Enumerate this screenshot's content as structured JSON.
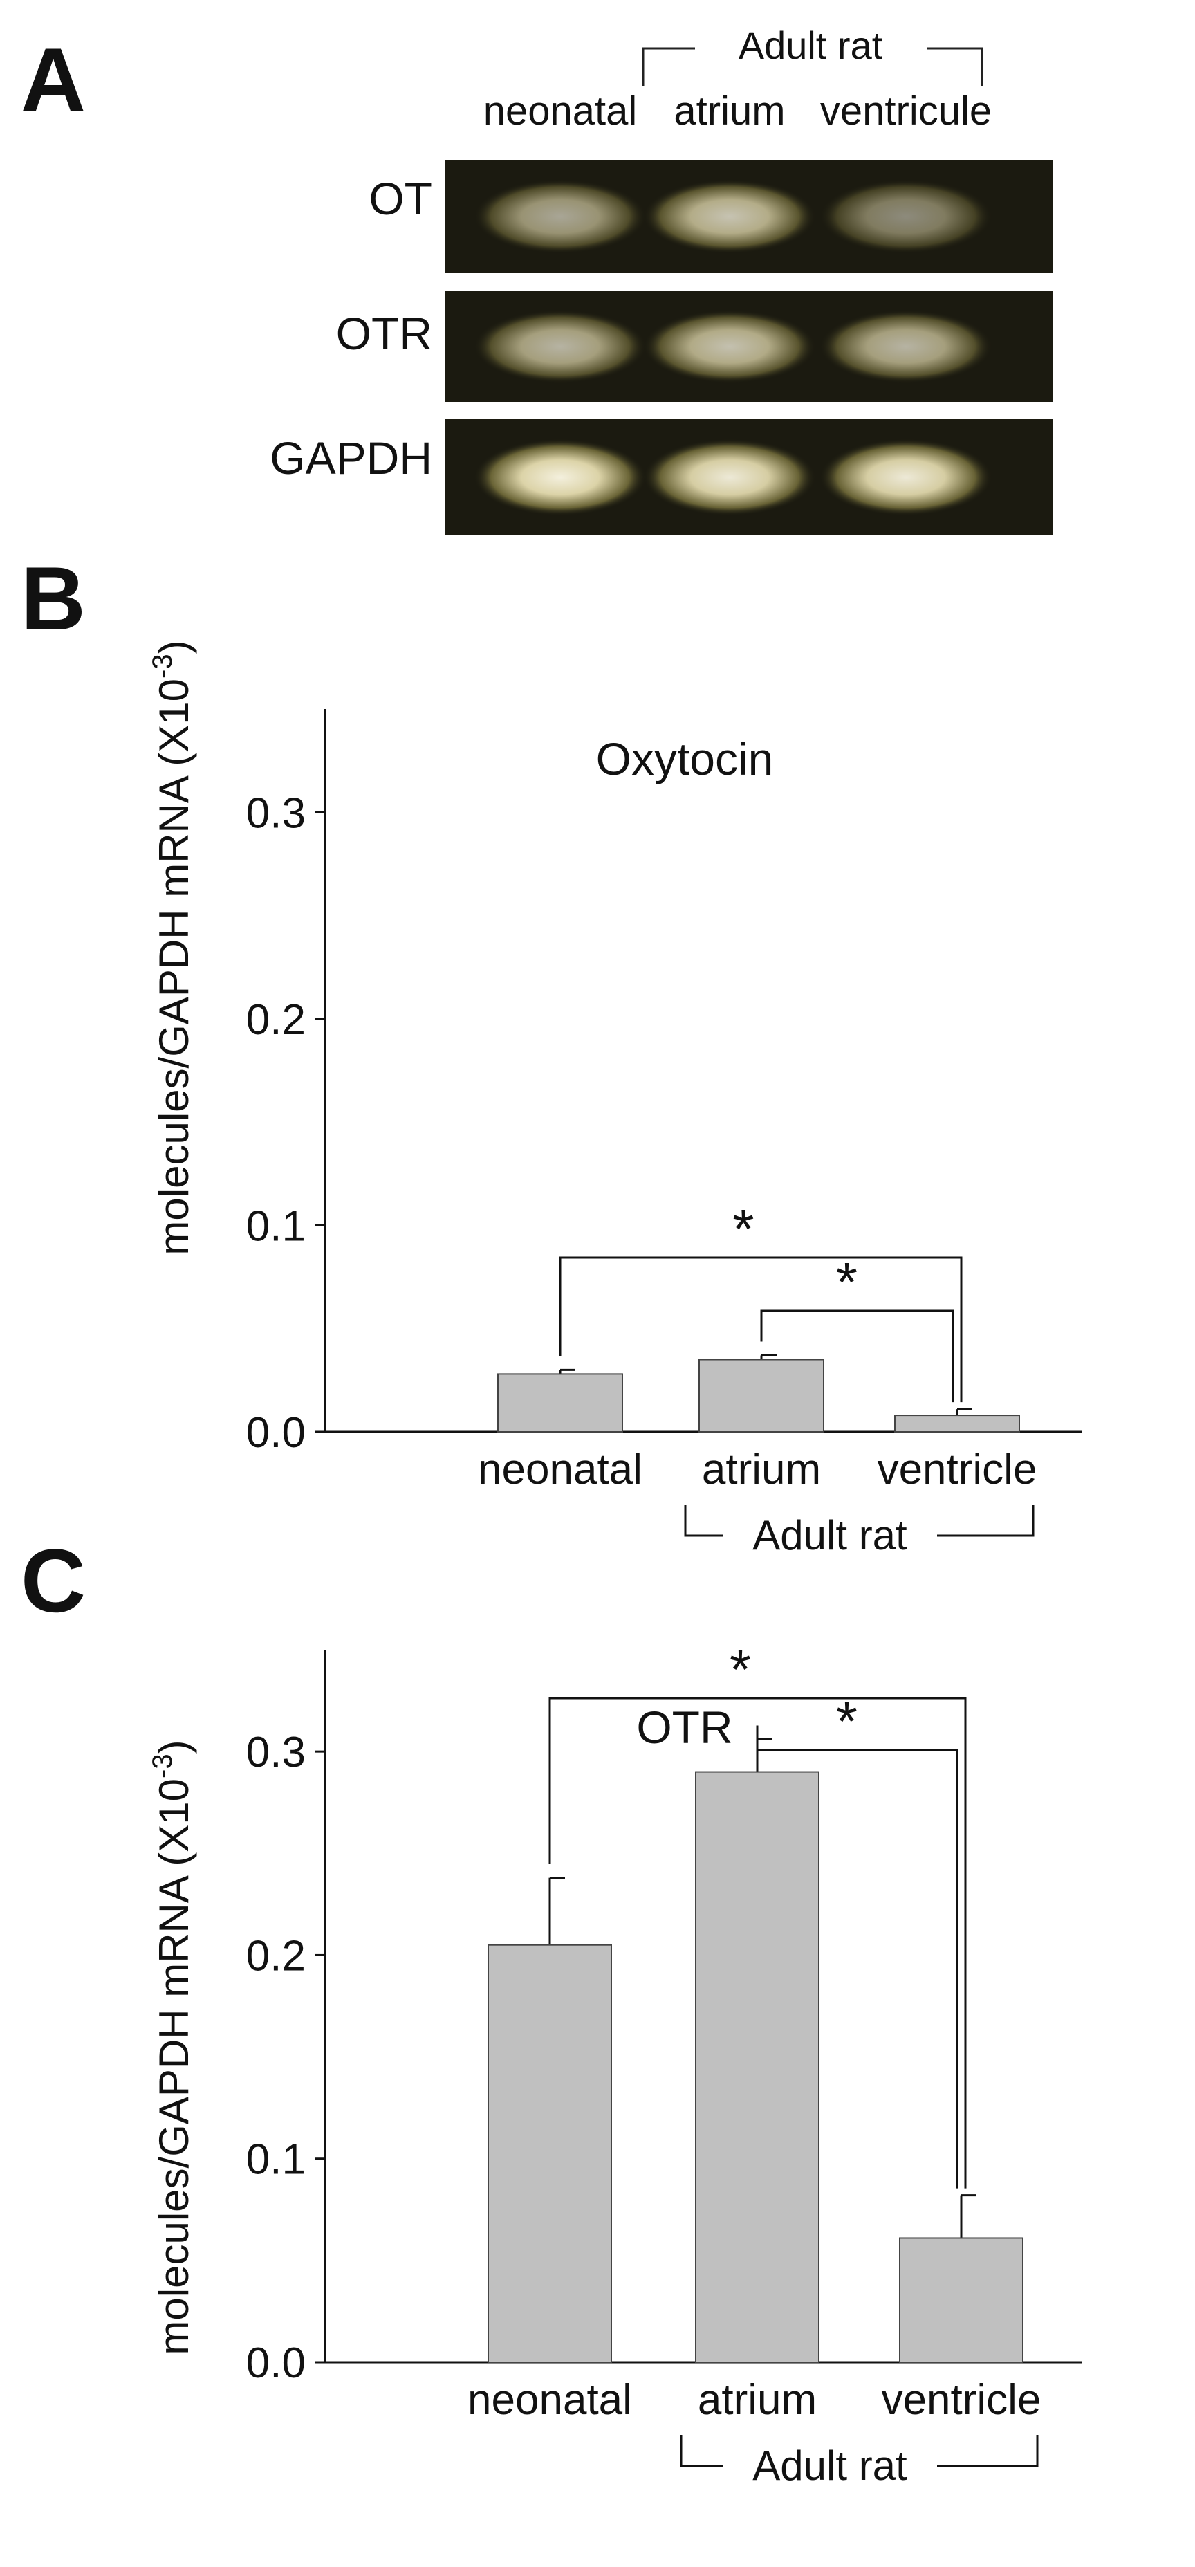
{
  "panel_a": {
    "letter": "A",
    "group_label": "Adult rat",
    "lanes": [
      "neonatal",
      "atrium",
      "ventricule"
    ],
    "rows": [
      {
        "label": "OT",
        "intensities": [
          0.62,
          0.75,
          0.5
        ]
      },
      {
        "label": "OTR",
        "intensities": [
          0.68,
          0.74,
          0.68
        ]
      },
      {
        "label": "GAPDH",
        "intensities": [
          0.95,
          0.92,
          0.92
        ]
      }
    ]
  },
  "chart_data": [
    {
      "panel": "B",
      "type": "bar",
      "title": "Oxytocin",
      "ylabel": "molecules/GAPDH mRNA (X10",
      "ylabel_sup": "-3",
      "ylabel_close": ")",
      "categories": [
        "neonatal",
        "atrium",
        "ventricle"
      ],
      "values": [
        0.028,
        0.035,
        0.008
      ],
      "errors": [
        0.002,
        0.002,
        0.003
      ],
      "ylim": [
        0,
        0.35
      ],
      "yticks": [
        "0.0",
        "0.1",
        "0.2",
        "0.3"
      ],
      "group_label": "Adult rat",
      "significance": [
        "*",
        "*"
      ],
      "bar_color": "#c0c0c0"
    },
    {
      "panel": "C",
      "type": "bar",
      "title": "OTR",
      "ylabel": "molecules/GAPDH mRNA (X10",
      "ylabel_sup": "-3",
      "ylabel_close": ")",
      "categories": [
        "neonatal",
        "atrium",
        "ventricle"
      ],
      "values": [
        0.205,
        0.29,
        0.061
      ],
      "errors": [
        0.033,
        0.016,
        0.021
      ],
      "ylim": [
        0,
        0.35
      ],
      "yticks": [
        "0.0",
        "0.1",
        "0.2",
        "0.3"
      ],
      "group_label": "Adult rat",
      "significance": [
        "*",
        "*"
      ],
      "bar_color": "#c0c0c0"
    }
  ]
}
